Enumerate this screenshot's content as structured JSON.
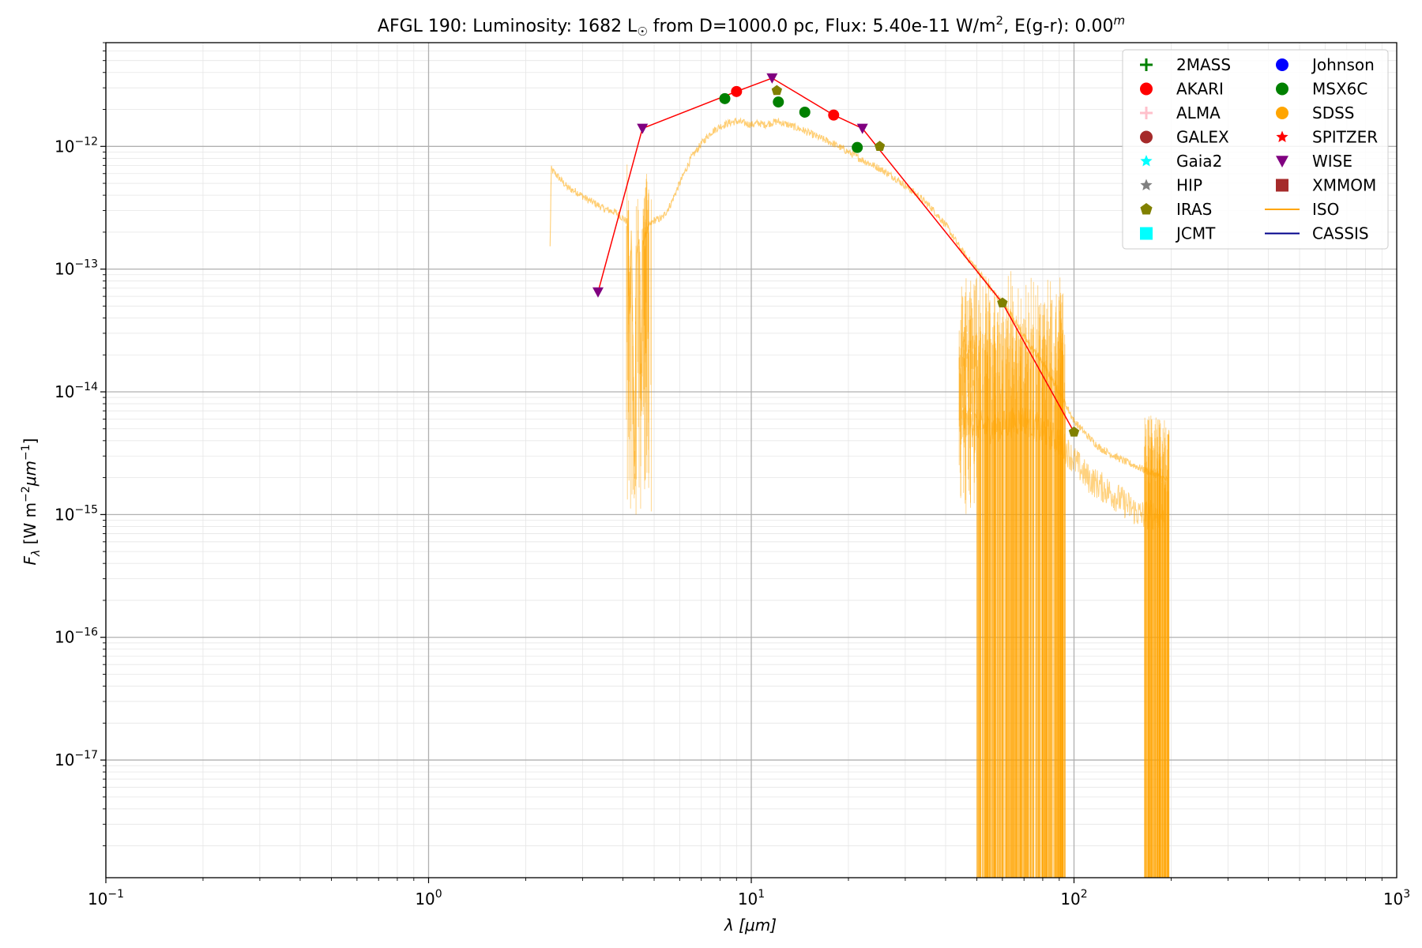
{
  "chart_data": {
    "type": "scatter",
    "title": {
      "main": "AFGL 190:  Luminosity: 1682 L",
      "sun_symbol": "☉",
      "from_text": " from D=1000.0 pc, Flux: 5.40e-11 W/m",
      "flux_exp": "2",
      "ext_text": ", E(g-r): 0.00",
      "ext_exp": "m"
    },
    "xlabel": {
      "lambda": "λ",
      "unit": " [μm]"
    },
    "ylabel": {
      "f": "F",
      "sub": "λ",
      "unit_a": " [W m",
      "exp1": "−2",
      "um": "μm",
      "exp2": "−1",
      "close": "]"
    },
    "x_scale": "log",
    "y_scale": "log",
    "xlim": [
      0.1,
      1000
    ],
    "ylim": [
      1.1e-18,
      7e-12
    ],
    "x_ticks": [
      {
        "v": 0.1,
        "base": "10",
        "exp": "−1"
      },
      {
        "v": 1,
        "base": "10",
        "exp": "0"
      },
      {
        "v": 10,
        "base": "10",
        "exp": "1"
      },
      {
        "v": 100,
        "base": "10",
        "exp": "2"
      },
      {
        "v": 1000,
        "base": "10",
        "exp": "3"
      }
    ],
    "y_ticks": [
      {
        "v": 1e-17,
        "base": "10",
        "exp": "−17"
      },
      {
        "v": 1e-16,
        "base": "10",
        "exp": "−16"
      },
      {
        "v": 1e-15,
        "base": "10",
        "exp": "−15"
      },
      {
        "v": 1e-14,
        "base": "10",
        "exp": "−14"
      },
      {
        "v": 1e-13,
        "base": "10",
        "exp": "−13"
      },
      {
        "v": 1e-12,
        "base": "10",
        "exp": "−12"
      }
    ],
    "grid": true,
    "legend_position": "top-right",
    "legend": [
      {
        "name": "2MASS",
        "marker": "plus",
        "color": "#008000"
      },
      {
        "name": "AKARI",
        "marker": "circle",
        "color": "#ff0000"
      },
      {
        "name": "ALMA",
        "marker": "plus",
        "color": "#ffc0cb"
      },
      {
        "name": "GALEX",
        "marker": "circle",
        "color": "#a52a2a"
      },
      {
        "name": "Gaia2",
        "marker": "star",
        "color": "#00ffff"
      },
      {
        "name": "HIP",
        "marker": "star",
        "color": "#808080"
      },
      {
        "name": "IRAS",
        "marker": "pentagon",
        "color": "#808000"
      },
      {
        "name": "JCMT",
        "marker": "square",
        "color": "#00ffff"
      },
      {
        "name": "Johnson",
        "marker": "circle",
        "color": "#0000ff"
      },
      {
        "name": "MSX6C",
        "marker": "circle",
        "color": "#008000"
      },
      {
        "name": "SDSS",
        "marker": "circle",
        "color": "#ffa500"
      },
      {
        "name": "SPITZER",
        "marker": "star",
        "color": "#ff0000"
      },
      {
        "name": "WISE",
        "marker": "triangle-down",
        "color": "#800080"
      },
      {
        "name": "XMMOM",
        "marker": "square",
        "color": "#a52a2a"
      },
      {
        "name": "ISO",
        "marker": "line",
        "color": "#ffa500"
      },
      {
        "name": "CASSIS",
        "marker": "line",
        "color": "#00008b"
      }
    ],
    "sed_line": {
      "color": "#ff0000",
      "points": [
        [
          3.35,
          6.5e-14
        ],
        [
          4.6,
          1.4e-12
        ],
        [
          9.0,
          2.8e-12
        ],
        [
          11.6,
          3.6e-12
        ],
        [
          18.0,
          1.8e-12
        ],
        [
          22.1,
          1.4e-12
        ],
        [
          60.0,
          5.3e-14
        ],
        [
          100.0,
          4.7e-15
        ]
      ]
    },
    "series": [
      {
        "name": "WISE",
        "marker": "triangle-down",
        "color": "#800080",
        "points": [
          [
            3.35,
            6.5e-14
          ],
          [
            4.6,
            1.4e-12
          ],
          [
            11.6,
            3.6e-12
          ],
          [
            22.1,
            1.4e-12
          ]
        ]
      },
      {
        "name": "AKARI",
        "marker": "circle",
        "color": "#ff0000",
        "points": [
          [
            9.0,
            2.8e-12
          ],
          [
            18.0,
            1.8e-12
          ]
        ]
      },
      {
        "name": "MSX6C",
        "marker": "circle",
        "color": "#008000",
        "points": [
          [
            8.28,
            2.45e-12
          ],
          [
            12.13,
            2.3e-12
          ],
          [
            14.65,
            1.9e-12
          ],
          [
            21.3,
            9.8e-13
          ]
        ]
      },
      {
        "name": "IRAS",
        "marker": "pentagon",
        "color": "#808000",
        "points": [
          [
            12.0,
            2.85e-12
          ],
          [
            25.0,
            1e-12
          ],
          [
            60.0,
            5.3e-14
          ],
          [
            100.0,
            4.7e-15
          ]
        ]
      },
      {
        "name": "ISO",
        "marker": "line",
        "color": "#ffa500",
        "points": [
          [
            2.38,
            1.5e-13
          ],
          [
            2.4,
            6.5e-13
          ],
          [
            2.5,
            5.8e-13
          ],
          [
            2.7,
            4.6e-13
          ],
          [
            2.9,
            4.2e-13
          ],
          [
            3.1,
            3.7e-13
          ],
          [
            3.3,
            3.4e-13
          ],
          [
            3.5,
            3.1e-13
          ],
          [
            3.8,
            2.9e-13
          ],
          [
            4.0,
            2.6e-13
          ],
          [
            4.15,
            2.4e-13
          ],
          [
            4.2,
            3.5e-14
          ],
          [
            4.25,
            2.4e-13
          ],
          [
            4.3,
            2e-14
          ],
          [
            4.35,
            1.7e-15
          ],
          [
            4.4,
            1.3e-13
          ],
          [
            4.5,
            1.8e-13
          ],
          [
            4.55,
            5.5e-15
          ],
          [
            4.6,
            1.6e-13
          ],
          [
            4.7,
            1.9e-13
          ],
          [
            4.8,
            2.2e-13
          ],
          [
            5.0,
            2.5e-13
          ],
          [
            5.3,
            2.6e-13
          ],
          [
            5.6,
            3.3e-13
          ],
          [
            6.0,
            5e-13
          ],
          [
            6.5,
            8e-13
          ],
          [
            7.0,
            1.05e-12
          ],
          [
            7.5,
            1.3e-12
          ],
          [
            8.0,
            1.45e-12
          ],
          [
            8.5,
            1.55e-12
          ],
          [
            9.0,
            1.6e-12
          ],
          [
            9.5,
            1.55e-12
          ],
          [
            10.0,
            1.5e-12
          ],
          [
            10.5,
            1.55e-12
          ],
          [
            11.0,
            1.5e-12
          ],
          [
            11.5,
            1.55e-12
          ],
          [
            12.0,
            1.6e-12
          ],
          [
            12.5,
            1.55e-12
          ],
          [
            13.0,
            1.5e-12
          ],
          [
            13.5,
            1.45e-12
          ],
          [
            14.5,
            1.35e-12
          ],
          [
            16.0,
            1.2e-12
          ],
          [
            18.0,
            1.05e-12
          ],
          [
            20.0,
            9e-13
          ],
          [
            22.0,
            7.8e-13
          ],
          [
            25.0,
            6.6e-13
          ],
          [
            28.0,
            5.5e-13
          ],
          [
            32.0,
            4.2e-13
          ],
          [
            36.0,
            3.2e-13
          ],
          [
            40.0,
            2.3e-13
          ],
          [
            45.0,
            1.4e-13
          ],
          [
            50.0,
            1e-13
          ],
          [
            55.0,
            7e-14
          ],
          [
            60.0,
            5.3e-14
          ],
          [
            65.0,
            4e-14
          ],
          [
            70.0,
            2.8e-14
          ],
          [
            80.0,
            1.7e-14
          ],
          [
            90.0,
            1e-14
          ],
          [
            100.0,
            5.8e-15
          ],
          [
            110.0,
            4.4e-15
          ],
          [
            120.0,
            3.5e-15
          ],
          [
            140.0,
            2.8e-15
          ],
          [
            160.0,
            2.4e-15
          ],
          [
            180.0,
            2.1e-15
          ],
          [
            195.0,
            1.9e-15
          ]
        ]
      }
    ],
    "iso_noisy_regions": [
      [
        4.1,
        4.9
      ],
      [
        44.0,
        94.0
      ],
      [
        165.0,
        197.0
      ]
    ],
    "iso_lower_branch": [
      [
        45.0,
        6e-15
      ],
      [
        55.0,
        5e-15
      ],
      [
        70.0,
        6e-15
      ],
      [
        90.0,
        4e-15
      ],
      [
        110.0,
        2e-15
      ],
      [
        130.0,
        1.5e-15
      ],
      [
        160.0,
        1e-15
      ],
      [
        190.0,
        1e-15
      ]
    ]
  }
}
